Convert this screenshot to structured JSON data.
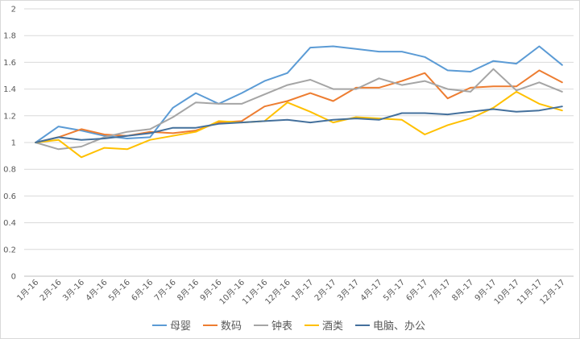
{
  "chart_data": {
    "type": "line",
    "title": "",
    "xlabel": "",
    "ylabel": "",
    "ylim": [
      0,
      2
    ],
    "yticks": [
      "0",
      "0.2",
      "0.4",
      "0.6",
      "0.8",
      "1",
      "1.2",
      "1.4",
      "1.6",
      "1.8",
      "2"
    ],
    "grid": "horizontal",
    "legend_position": "bottom",
    "categories": [
      "1月-16",
      "2月-16",
      "3月-16",
      "4月-16",
      "5月-16",
      "6月-16",
      "7月-16",
      "8月-16",
      "9月-16",
      "10月-16",
      "11月-16",
      "12月-16",
      "1月-17",
      "2月-17",
      "3月-17",
      "4月-17",
      "5月-17",
      "6月-17",
      "7月-17",
      "8月-17",
      "9月-17",
      "10月-17",
      "11月-17",
      "12月-17"
    ],
    "series": [
      {
        "name": "母婴",
        "color": "#5b9bd5",
        "values": [
          1.0,
          1.12,
          1.09,
          1.05,
          1.03,
          1.04,
          1.26,
          1.37,
          1.29,
          1.37,
          1.46,
          1.52,
          1.71,
          1.72,
          1.7,
          1.68,
          1.68,
          1.64,
          1.54,
          1.53,
          1.61,
          1.59,
          1.72,
          1.58
        ]
      },
      {
        "name": "数码",
        "color": "#ed7d31",
        "values": [
          1.0,
          1.04,
          1.1,
          1.06,
          1.05,
          1.08,
          1.07,
          1.09,
          1.15,
          1.16,
          1.27,
          1.31,
          1.37,
          1.31,
          1.41,
          1.41,
          1.46,
          1.52,
          1.33,
          1.41,
          1.42,
          1.42,
          1.54,
          1.45
        ]
      },
      {
        "name": "钟表",
        "color": "#a5a5a5",
        "values": [
          1.0,
          0.95,
          0.97,
          1.04,
          1.08,
          1.1,
          1.19,
          1.3,
          1.29,
          1.29,
          1.36,
          1.43,
          1.47,
          1.4,
          1.4,
          1.48,
          1.43,
          1.46,
          1.4,
          1.38,
          1.55,
          1.39,
          1.45,
          1.38
        ]
      },
      {
        "name": "酒类",
        "color": "#ffc000",
        "values": [
          1.0,
          1.02,
          0.89,
          0.96,
          0.95,
          1.02,
          1.05,
          1.08,
          1.16,
          1.15,
          1.16,
          1.3,
          1.23,
          1.15,
          1.19,
          1.18,
          1.17,
          1.06,
          1.13,
          1.18,
          1.26,
          1.38,
          1.29,
          1.24
        ]
      },
      {
        "name": "电脑、办公",
        "color": "#44709c",
        "values": [
          1.0,
          1.04,
          1.02,
          1.03,
          1.05,
          1.07,
          1.11,
          1.11,
          1.14,
          1.15,
          1.16,
          1.17,
          1.15,
          1.17,
          1.18,
          1.17,
          1.22,
          1.22,
          1.21,
          1.23,
          1.25,
          1.23,
          1.24,
          1.27
        ]
      }
    ]
  }
}
